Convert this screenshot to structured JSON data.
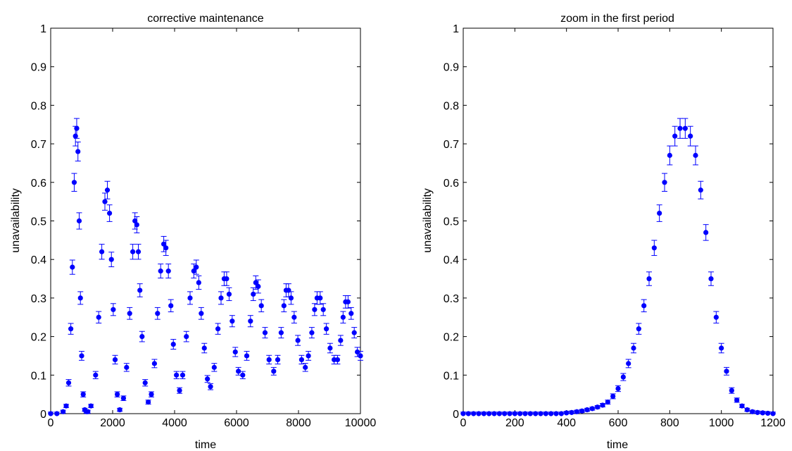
{
  "colors": {
    "marker": "#0000ff",
    "axes": "#000000",
    "background": "#ffffff"
  },
  "chart_data": [
    {
      "type": "scatter",
      "title": "corrective maintenance",
      "xlabel": "time",
      "ylabel": "unavailability",
      "xlim": [
        0,
        10000
      ],
      "ylim": [
        0,
        1
      ],
      "xticks": [
        0,
        2000,
        4000,
        6000,
        8000,
        10000
      ],
      "yticks": [
        0,
        0.1,
        0.2,
        0.3,
        0.4,
        0.5,
        0.6,
        0.7,
        0.8,
        0.9,
        1
      ],
      "xtick_labels": [
        "0",
        "2000",
        "4000",
        "6000",
        "8000",
        "10000"
      ],
      "ytick_labels": [
        "0",
        "0.1",
        "0.2",
        "0.3",
        "0.4",
        "0.5",
        "0.6",
        "0.7",
        "0.8",
        "0.9",
        "1"
      ],
      "grid": false,
      "error_bars": true,
      "error_scale": 0.03,
      "series": [
        {
          "x": [
            0,
            200,
            400,
            500,
            580,
            650,
            700,
            760,
            800,
            840,
            880,
            920,
            960,
            1000,
            1050,
            1100,
            1150,
            1200,
            1300,
            1450,
            1550,
            1650,
            1750,
            1830,
            1900,
            1960,
            2020,
            2080,
            2150,
            2230,
            2350,
            2450,
            2550,
            2650,
            2720,
            2780,
            2830,
            2880,
            2950,
            3050,
            3150,
            3250,
            3350,
            3450,
            3550,
            3650,
            3720,
            3800,
            3880,
            3960,
            4060,
            4160,
            4260,
            4380,
            4500,
            4620,
            4700,
            4780,
            4860,
            4960,
            5060,
            5160,
            5280,
            5400,
            5500,
            5600,
            5680,
            5760,
            5860,
            5960,
            6060,
            6200,
            6330,
            6450,
            6540,
            6620,
            6700,
            6800,
            6920,
            7050,
            7200,
            7330,
            7440,
            7530,
            7600,
            7680,
            7760,
            7860,
            7980,
            8100,
            8220,
            8320,
            8430,
            8520,
            8600,
            8700,
            8800,
            8900,
            9020,
            9150,
            9260,
            9360,
            9440,
            9520,
            9600,
            9700,
            9800,
            9900,
            10000
          ],
          "values": [
            0,
            0,
            0.005,
            0.02,
            0.08,
            0.22,
            0.38,
            0.6,
            0.72,
            0.74,
            0.68,
            0.5,
            0.3,
            0.15,
            0.05,
            0.01,
            0.005,
            0.005,
            0.02,
            0.1,
            0.25,
            0.42,
            0.55,
            0.58,
            0.52,
            0.4,
            0.27,
            0.14,
            0.05,
            0.01,
            0.04,
            0.12,
            0.26,
            0.42,
            0.5,
            0.49,
            0.42,
            0.32,
            0.2,
            0.08,
            0.03,
            0.05,
            0.13,
            0.26,
            0.37,
            0.44,
            0.43,
            0.37,
            0.28,
            0.18,
            0.1,
            0.06,
            0.1,
            0.2,
            0.3,
            0.37,
            0.38,
            0.34,
            0.26,
            0.17,
            0.09,
            0.07,
            0.12,
            0.22,
            0.3,
            0.35,
            0.35,
            0.31,
            0.24,
            0.16,
            0.11,
            0.1,
            0.15,
            0.24,
            0.31,
            0.34,
            0.33,
            0.28,
            0.21,
            0.14,
            0.11,
            0.14,
            0.21,
            0.28,
            0.32,
            0.32,
            0.3,
            0.25,
            0.19,
            0.14,
            0.12,
            0.15,
            0.21,
            0.27,
            0.3,
            0.3,
            0.27,
            0.22,
            0.17,
            0.14,
            0.14,
            0.19,
            0.25,
            0.29,
            0.29,
            0.26,
            0.21,
            0.16,
            0.15
          ]
        }
      ]
    },
    {
      "type": "scatter",
      "title": "zoom in the first period",
      "xlabel": "time",
      "ylabel": "unavailability",
      "xlim": [
        0,
        1200
      ],
      "ylim": [
        0,
        1
      ],
      "xticks": [
        0,
        200,
        400,
        600,
        800,
        1000,
        1200
      ],
      "yticks": [
        0,
        0.1,
        0.2,
        0.3,
        0.4,
        0.5,
        0.6,
        0.7,
        0.8,
        0.9,
        1
      ],
      "xtick_labels": [
        "0",
        "200",
        "400",
        "600",
        "800",
        "1000",
        "1200"
      ],
      "ytick_labels": [
        "0",
        "0.1",
        "0.2",
        "0.3",
        "0.4",
        "0.5",
        "0.6",
        "0.7",
        "0.8",
        "0.9",
        "1"
      ],
      "grid": false,
      "error_bars": true,
      "error_scale": 0.03,
      "series": [
        {
          "x": [
            0,
            20,
            40,
            60,
            80,
            100,
            120,
            140,
            160,
            180,
            200,
            220,
            240,
            260,
            280,
            300,
            320,
            340,
            360,
            380,
            400,
            420,
            440,
            460,
            480,
            500,
            520,
            540,
            560,
            580,
            600,
            620,
            640,
            660,
            680,
            700,
            720,
            740,
            760,
            780,
            800,
            820,
            840,
            860,
            880,
            900,
            920,
            940,
            960,
            980,
            1000,
            1020,
            1040,
            1060,
            1080,
            1100,
            1120,
            1140,
            1160,
            1180,
            1200
          ],
          "values": [
            0,
            0,
            0,
            0,
            0,
            0,
            0,
            0,
            0,
            0,
            0,
            0,
            0,
            0,
            0,
            0,
            0,
            0,
            0,
            0,
            0.002,
            0.003,
            0.005,
            0.007,
            0.01,
            0.013,
            0.017,
            0.022,
            0.03,
            0.045,
            0.065,
            0.095,
            0.13,
            0.17,
            0.22,
            0.28,
            0.35,
            0.43,
            0.52,
            0.6,
            0.67,
            0.72,
            0.74,
            0.74,
            0.72,
            0.67,
            0.58,
            0.47,
            0.35,
            0.25,
            0.17,
            0.11,
            0.06,
            0.035,
            0.02,
            0.01,
            0.005,
            0.003,
            0.002,
            0.001,
            0
          ]
        }
      ]
    }
  ]
}
